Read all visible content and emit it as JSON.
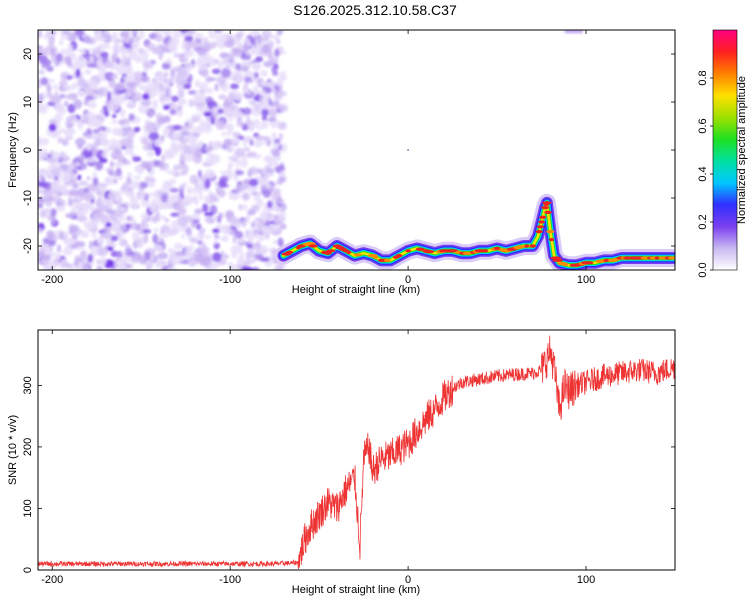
{
  "title": "S126.2025.312.10.58.C37",
  "chart_data": [
    {
      "type": "heatmap",
      "xlabel": "Height of straight line (km)",
      "ylabel": "Frequency (Hz)",
      "xlim": [
        -208,
        150
      ],
      "ylim": [
        -25,
        25
      ],
      "xticks": [
        -200,
        -100,
        0,
        100
      ],
      "yticks": [
        -20,
        -10,
        0,
        10,
        20
      ],
      "noise_region_x": [
        -208,
        -70
      ],
      "ridge": {
        "x": [
          -70,
          -65,
          -60,
          -55,
          -50,
          -45,
          -40,
          -35,
          -30,
          -25,
          -20,
          -15,
          -10,
          -5,
          0,
          5,
          10,
          15,
          20,
          25,
          30,
          35,
          40,
          45,
          50,
          55,
          60,
          65,
          70,
          73,
          75,
          77,
          78,
          80,
          82,
          85,
          90,
          95,
          100,
          105,
          110,
          115,
          120,
          125,
          130,
          135,
          140,
          145,
          150
        ],
        "freq": [
          -22,
          -21,
          -20,
          -19.5,
          -21,
          -21.5,
          -20,
          -21,
          -22,
          -21.5,
          -22,
          -23,
          -23,
          -22,
          -21,
          -20.5,
          -21,
          -21.5,
          -21,
          -21,
          -21.5,
          -21.5,
          -21,
          -21,
          -20.5,
          -21,
          -20.5,
          -20,
          -20,
          -18,
          -15,
          -12,
          -11,
          -17,
          -22,
          -23.5,
          -24,
          -24,
          -23.5,
          -23.5,
          -23,
          -23,
          -22.5,
          -22.5,
          -22.5,
          -22.5,
          -22.5,
          -22.5,
          -22.5
        ]
      },
      "colorbar": {
        "label": "Normalized spectral amplitude",
        "ticks": [
          0.0,
          0.2,
          0.4,
          0.6,
          0.8
        ],
        "tick_labels": [
          "0.0",
          "0.2",
          "0.4",
          "0.6",
          "0.8"
        ],
        "range": [
          0,
          1
        ],
        "colormap": [
          "#ffffff",
          "#c9b8f0",
          "#7a3ff0",
          "#3030ff",
          "#00c8ff",
          "#00e0a0",
          "#20e020",
          "#a0e000",
          "#ffe000",
          "#ff8000",
          "#ff2020",
          "#ff0080"
        ]
      }
    },
    {
      "type": "line",
      "xlabel": "Height of straight line (km)",
      "ylabel": "SNR (10 * v/v)",
      "xlim": [
        -208,
        150
      ],
      "ylim": [
        0,
        390
      ],
      "xticks": [
        -200,
        -100,
        0,
        100
      ],
      "yticks": [
        0,
        100,
        200,
        300
      ],
      "line_color": "#ee3333",
      "series": [
        {
          "x": [
            -208,
            -190,
            -170,
            -150,
            -130,
            -110,
            -90,
            -75,
            -62,
            -58,
            -55,
            -50,
            -45,
            -40,
            -35,
            -30,
            -27,
            -25,
            -22,
            -20,
            -15,
            -10,
            -5,
            0,
            5,
            10,
            15,
            20,
            25,
            30,
            40,
            50,
            60,
            70,
            75,
            80,
            82,
            85,
            88,
            90,
            95,
            100,
            110,
            120,
            130,
            140,
            150
          ],
          "y": [
            10,
            10,
            10,
            10,
            10,
            10,
            10,
            10,
            12,
            50,
            70,
            90,
            110,
            100,
            130,
            150,
            40,
            180,
            200,
            160,
            180,
            185,
            195,
            205,
            225,
            245,
            260,
            280,
            295,
            305,
            310,
            315,
            318,
            320,
            325,
            355,
            330,
            260,
            300,
            290,
            300,
            305,
            315,
            320,
            325,
            320,
            330
          ]
        }
      ]
    }
  ]
}
